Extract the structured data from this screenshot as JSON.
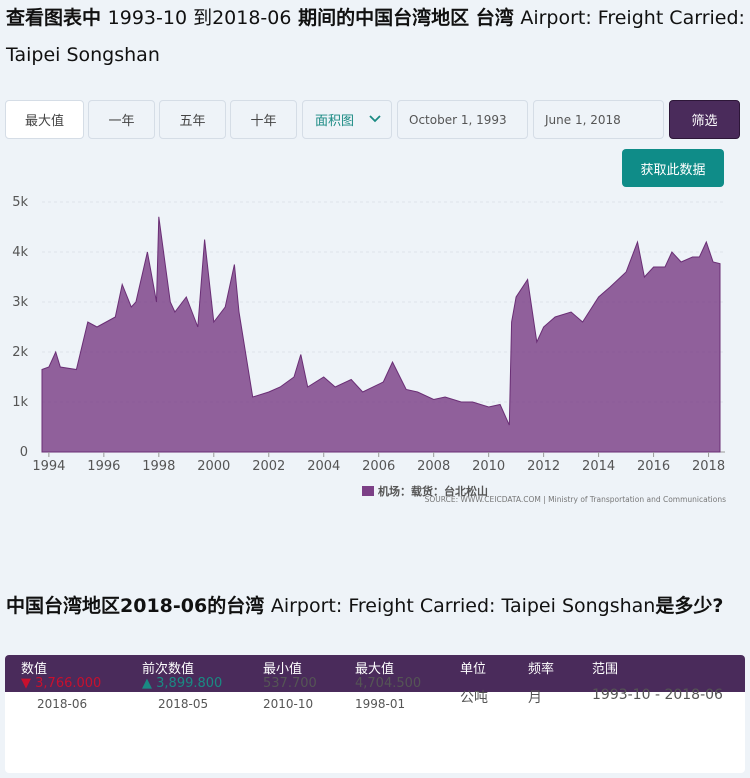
{
  "page": {
    "title_cn": "查看图表中",
    "title_range": "1993-10 到2018-06",
    "title_mid": "期间的中国台湾地区 台湾",
    "title_series": "Airport: Freight Carried: Taipei Songshan"
  },
  "controls": {
    "range_buttons": [
      "最大值",
      "一年",
      "五年",
      "十年"
    ],
    "chart_type": "面积图",
    "start_date": "October 1, 1993",
    "end_date": "June 1, 2018",
    "filter_label": "筛选",
    "fetch_label": "获取此数据"
  },
  "colors": {
    "area": "#7b3f86",
    "accent": "#0f8c88",
    "header": "#4a2b5b"
  },
  "chart_data": {
    "type": "area",
    "x_start": "1993-10",
    "x_end": "2018-06",
    "frequency": "monthly",
    "xticks": [
      "1994",
      "1996",
      "1998",
      "2000",
      "2002",
      "2004",
      "2006",
      "2008",
      "2010",
      "2012",
      "2014",
      "2016",
      "2018"
    ],
    "yticks": [
      "0",
      "1k",
      "2k",
      "3k",
      "4k",
      "5k"
    ],
    "ylim": [
      0,
      5000
    ],
    "legend": "机场：载货：台北松山",
    "source": "SOURCE: WWW.CEICDATA.COM | Ministry of Transportation and Communications",
    "x": [
      "1993-10",
      "1994-01",
      "1994-04",
      "1994-06",
      "1995-01",
      "1995-06",
      "1995-10",
      "1996-06",
      "1996-09",
      "1997-01",
      "1997-03",
      "1997-08",
      "1997-12",
      "1998-01",
      "1998-06",
      "1998-08",
      "1999-01",
      "1999-06",
      "1999-09",
      "2000-01",
      "2000-06",
      "2000-10",
      "2000-12",
      "2001-06",
      "2002-01",
      "2002-06",
      "2002-12",
      "2003-03",
      "2003-06",
      "2004-01",
      "2004-06",
      "2005-01",
      "2005-06",
      "2006-03",
      "2006-07",
      "2007-01",
      "2007-06",
      "2008-01",
      "2008-06",
      "2009-01",
      "2009-06",
      "2010-01",
      "2010-06",
      "2010-10",
      "2010-11",
      "2011-01",
      "2011-06",
      "2011-10",
      "2012-01",
      "2012-06",
      "2013-01",
      "2013-06",
      "2014-01",
      "2014-06",
      "2015-01",
      "2015-06",
      "2015-09",
      "2016-01",
      "2016-06",
      "2016-09",
      "2017-01",
      "2017-06",
      "2017-09",
      "2017-12",
      "2018-03",
      "2018-06"
    ],
    "values": [
      1650,
      1700,
      2000,
      1700,
      1650,
      2600,
      2500,
      2700,
      3350,
      2900,
      3000,
      4000,
      3000,
      4704.5,
      3000,
      2800,
      3100,
      2500,
      4250,
      2600,
      2900,
      3750,
      2800,
      1100,
      1200,
      1300,
      1500,
      1950,
      1300,
      1500,
      1300,
      1450,
      1200,
      1400,
      1800,
      1250,
      1200,
      1050,
      1100,
      1000,
      1000,
      900,
      950,
      537.7,
      2600,
      3100,
      3450,
      2200,
      2500,
      2700,
      2800,
      2600,
      3100,
      3300,
      3600,
      4200,
      3500,
      3700,
      3700,
      4000,
      3800,
      3900,
      3900,
      4200,
      3800,
      3766
    ]
  },
  "question": {
    "prefix": "中国台湾地区2018-06的台湾",
    "series": "Airport: Freight Carried: Taipei Songshan",
    "suffix": "是多少?"
  },
  "table": {
    "headers": [
      "数值",
      "前次数值",
      "最小值",
      "最大值",
      "单位",
      "频率",
      "范围"
    ],
    "value": "3,766.000",
    "value_date": "2018-06",
    "prev_value": "3,899.800",
    "prev_date": "2018-05",
    "min_value": "537.700",
    "min_date": "2010-10",
    "max_value": "4,704.500",
    "max_date": "1998-01",
    "unit": "公吨",
    "frequency": "月",
    "range": "1993-10 - 2018-06"
  }
}
